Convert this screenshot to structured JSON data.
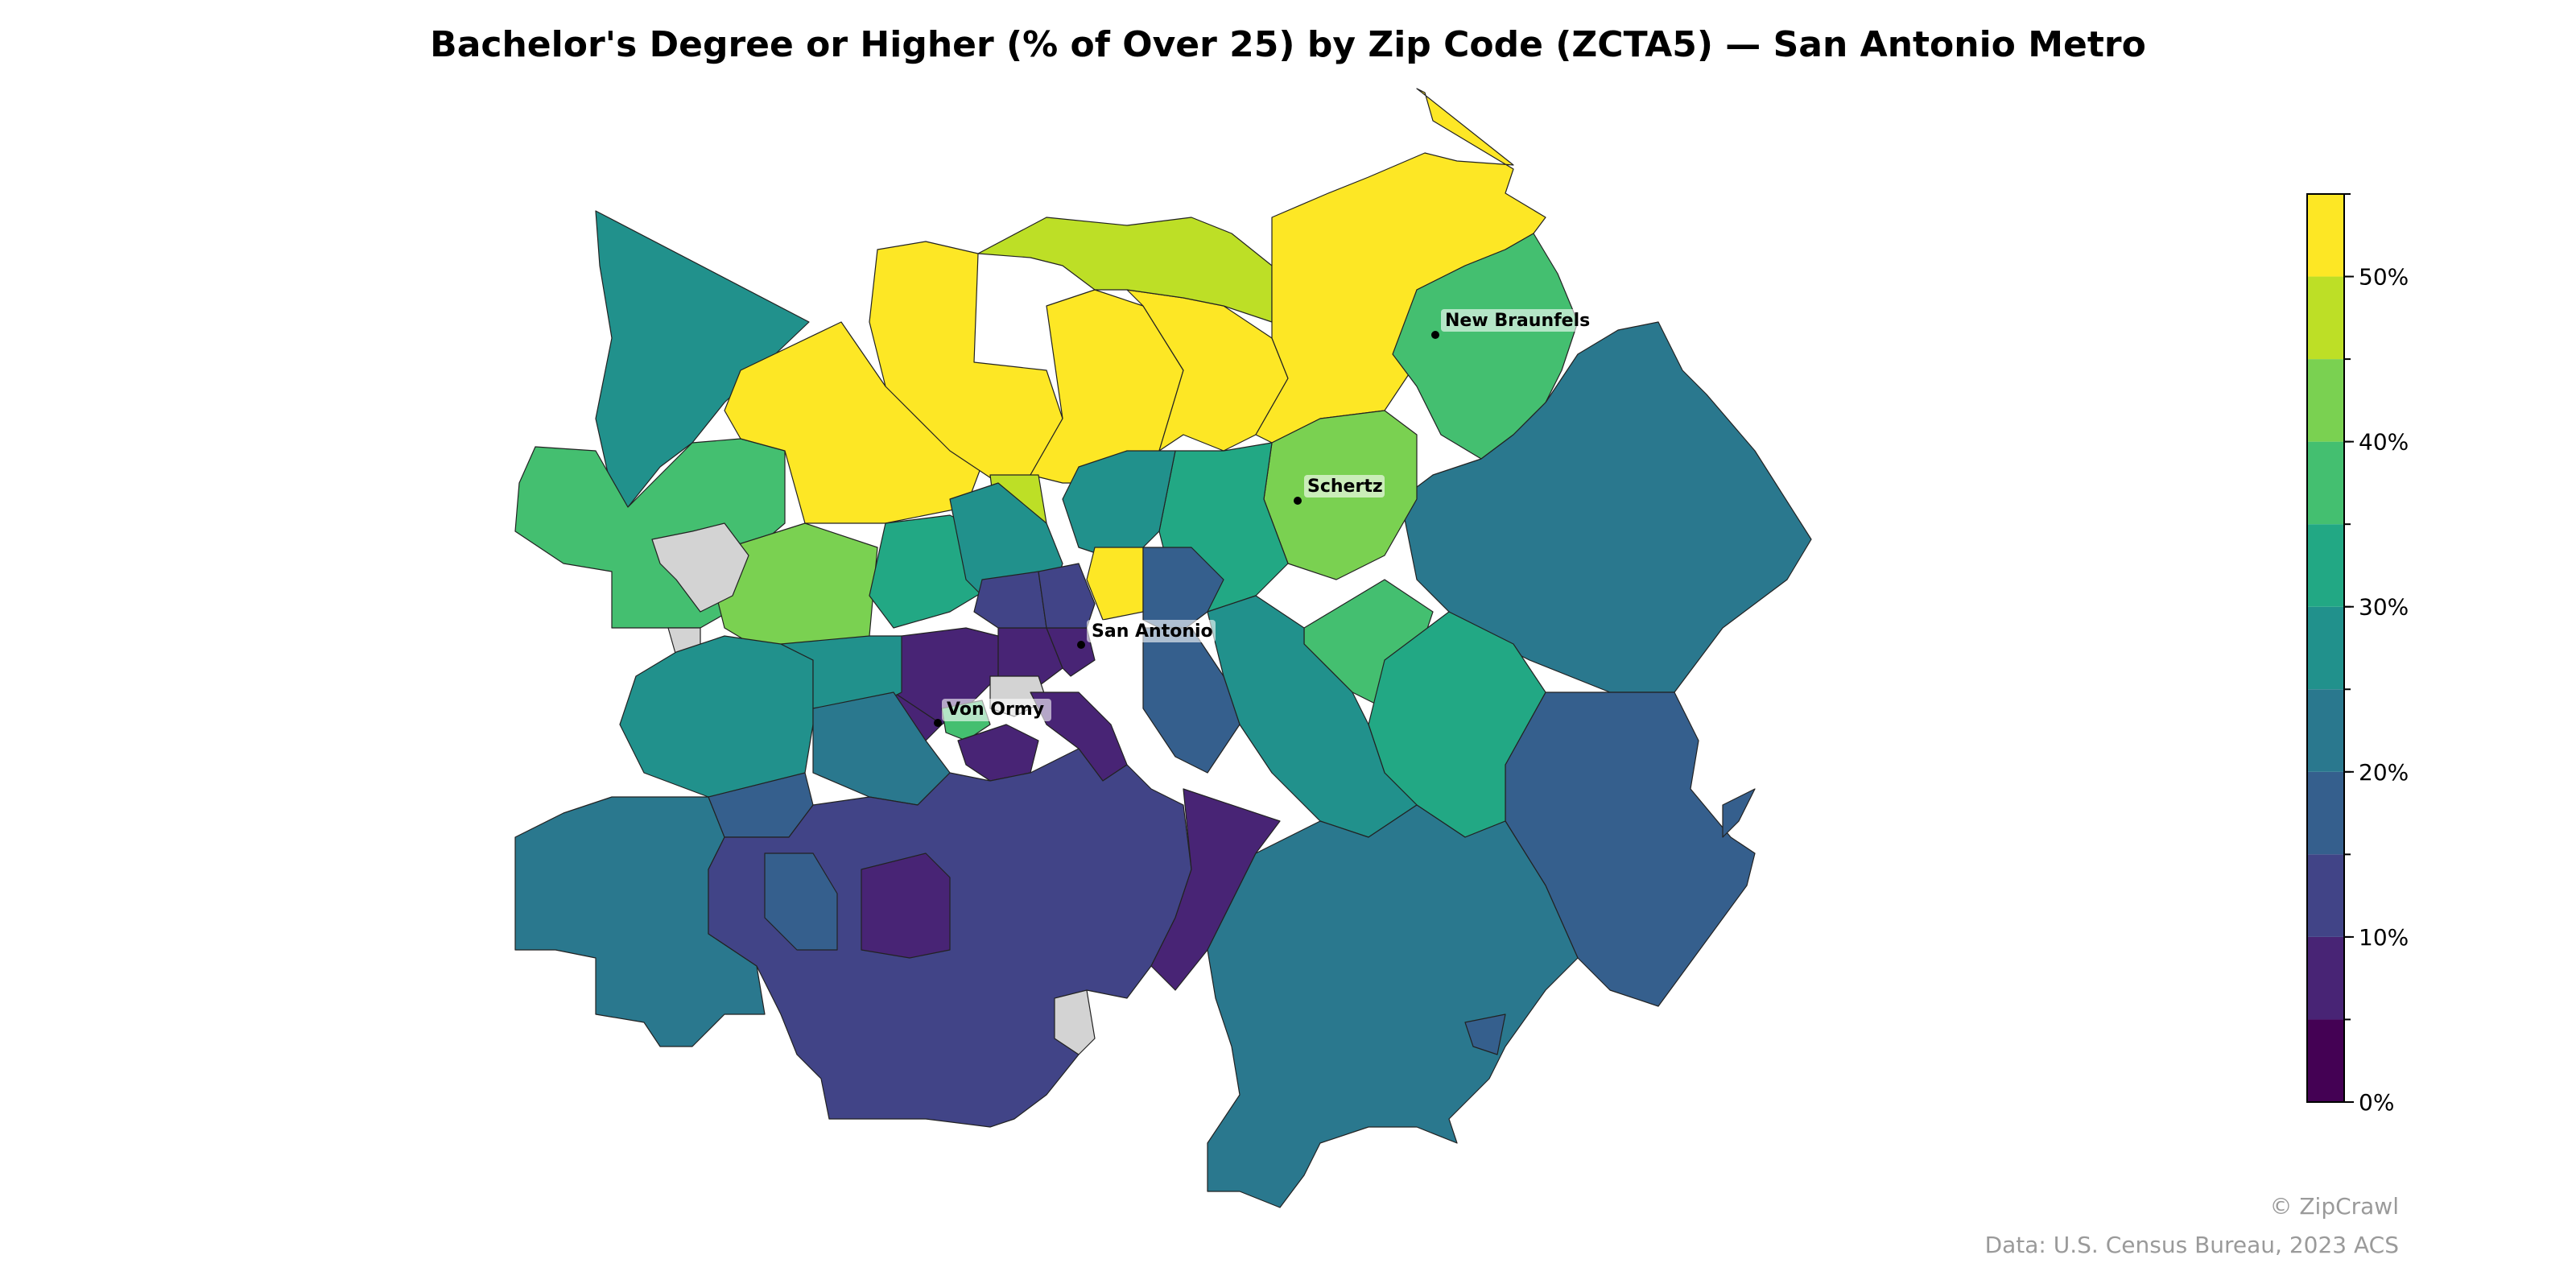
{
  "title": "Bachelor's Degree or Higher (% of Over 25) by Zip Code (ZCTA5) — San Antonio Metro",
  "cities": [
    {
      "name": "New Braunfels"
    },
    {
      "name": "Schertz"
    },
    {
      "name": "San Antonio"
    },
    {
      "name": "Von Ormy"
    }
  ],
  "colorbar": {
    "ticks": [
      "0%",
      "10%",
      "20%",
      "30%",
      "40%",
      "50%"
    ],
    "range": [
      0,
      55
    ],
    "bin_step": 5,
    "colors": [
      "#440154",
      "#482475",
      "#414487",
      "#355f8d",
      "#2a788e",
      "#21918c",
      "#22a884",
      "#44bf70",
      "#7ad151",
      "#bddf26",
      "#fde725"
    ],
    "no_data_color": "#d3d3d3"
  },
  "credits": {
    "brand": "© ZipCrawl",
    "source": "Data: U.S. Census Bureau, 2023 ACS"
  }
}
